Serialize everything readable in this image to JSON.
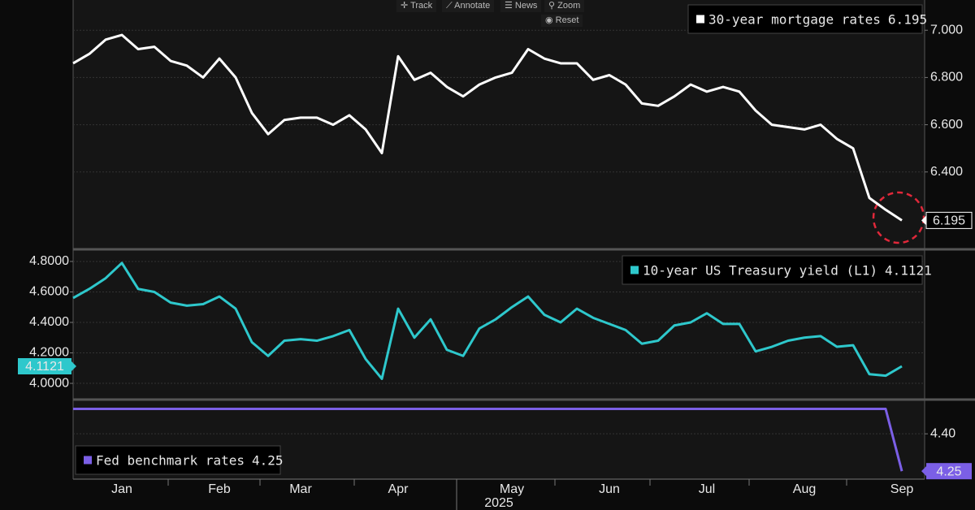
{
  "toolbar": [
    "Track",
    "Annotate",
    "News",
    "Zoom"
  ],
  "reset": "Reset",
  "chart_data": [
    {
      "type": "line",
      "y_axis": "right",
      "legend": "top-right",
      "series": [
        {
          "name": "30-year mortgage rates",
          "color": "#ffffff",
          "values": [
            6.86,
            6.9,
            6.96,
            6.98,
            6.92,
            6.93,
            6.87,
            6.85,
            6.8,
            6.88,
            6.8,
            6.65,
            6.56,
            6.62,
            6.63,
            6.63,
            6.6,
            6.64,
            6.58,
            6.48,
            6.89,
            6.79,
            6.82,
            6.76,
            6.72,
            6.77,
            6.8,
            6.82,
            6.92,
            6.88,
            6.86,
            6.86,
            6.79,
            6.81,
            6.77,
            6.69,
            6.68,
            6.72,
            6.77,
            6.74,
            6.76,
            6.74,
            6.66,
            6.6,
            6.59,
            6.58,
            6.6,
            6.54,
            6.5,
            6.29,
            6.24,
            6.195
          ]
        }
      ],
      "ylim": [
        6.076,
        7.128
      ],
      "yticks": [
        {
          "value": 6.4,
          "label": "6.400"
        },
        {
          "value": 6.6,
          "label": "6.600"
        },
        {
          "value": 6.8,
          "label": "6.800"
        },
        {
          "value": 7,
          "label": "7.000"
        }
      ],
      "grid": true
    },
    {
      "type": "line",
      "y_axis": "left",
      "legend": "top-right",
      "series": [
        {
          "name": "10-year US Treasury yield (L1)",
          "color": "#2ec8cc",
          "values": [
            4.56,
            4.62,
            4.69,
            4.79,
            4.62,
            4.6,
            4.53,
            4.51,
            4.52,
            4.57,
            4.49,
            4.27,
            4.18,
            4.28,
            4.29,
            4.28,
            4.31,
            4.35,
            4.16,
            4.03,
            4.49,
            4.3,
            4.42,
            4.22,
            4.18,
            4.36,
            4.42,
            4.5,
            4.57,
            4.45,
            4.4,
            4.49,
            4.43,
            4.39,
            4.35,
            4.26,
            4.28,
            4.38,
            4.4,
            4.46,
            4.39,
            4.39,
            4.21,
            4.24,
            4.28,
            4.3,
            4.31,
            4.24,
            4.25,
            4.06,
            4.05,
            4.1121
          ]
        }
      ],
      "ylim": [
        3.899,
        4.869
      ],
      "yticks": [
        {
          "value": 4,
          "label": "4.0000"
        },
        {
          "value": 4.2,
          "label": "4.2000"
        },
        {
          "value": 4.4,
          "label": "4.4000"
        },
        {
          "value": 4.6,
          "label": "4.6000"
        },
        {
          "value": 4.8,
          "label": "4.8000"
        }
      ],
      "grid": true
    },
    {
      "type": "line",
      "y_axis": "right",
      "legend": "bottom-left",
      "series": [
        {
          "name": "Fed benchmark rates",
          "color": "#7b5fe6",
          "values": [
            4.5,
            4.5,
            4.5,
            4.5,
            4.5,
            4.5,
            4.5,
            4.5,
            4.5,
            4.5,
            4.5,
            4.5,
            4.5,
            4.5,
            4.5,
            4.5,
            4.5,
            4.5,
            4.5,
            4.5,
            4.5,
            4.5,
            4.5,
            4.5,
            4.5,
            4.5,
            4.5,
            4.5,
            4.5,
            4.5,
            4.5,
            4.5,
            4.5,
            4.5,
            4.5,
            4.5,
            4.5,
            4.5,
            4.5,
            4.5,
            4.5,
            4.5,
            4.5,
            4.5,
            4.5,
            4.5,
            4.5,
            4.5,
            4.5,
            4.5,
            4.5,
            4.25
          ]
        }
      ],
      "ylim": [
        4.218,
        4.531
      ],
      "yticks": [
        {
          "value": 4.4,
          "label": "4.40"
        }
      ],
      "grid": true,
      "categories": [
        null,
        null,
        null,
        "Jan",
        null,
        null,
        null,
        null,
        null,
        "Feb",
        null,
        null,
        null,
        null,
        "Mar",
        null,
        null,
        null,
        null,
        null,
        "Apr",
        null,
        null,
        null,
        null,
        null,
        null,
        "May",
        null,
        null,
        null,
        null,
        null,
        "Jun",
        null,
        null,
        null,
        null,
        null,
        "Jul",
        null,
        null,
        null,
        null,
        null,
        "Aug",
        null,
        null,
        null,
        null,
        null,
        "Sep"
      ],
      "xlabel": "2025"
    }
  ]
}
